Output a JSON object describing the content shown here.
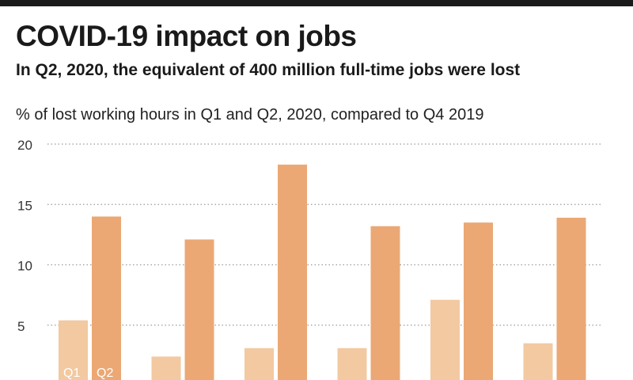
{
  "title": "COVID-19 impact on jobs",
  "subtitle": "In Q2, 2020, the equivalent of 400 million full-time jobs were lost",
  "chart_data": {
    "type": "bar",
    "ylabel": "% of lost working hours in Q1 and Q2, 2020, compared to Q4 2019",
    "ylim": [
      0,
      20
    ],
    "yticks": [
      5,
      10,
      15,
      20
    ],
    "grid": true,
    "categories": [
      "",
      "",
      "",
      "",
      "",
      ""
    ],
    "series": [
      {
        "name": "Q1",
        "color": "#f2c9a0",
        "values": [
          5.4,
          2.4,
          3.1,
          3.1,
          7.1,
          3.5
        ]
      },
      {
        "name": "Q2",
        "color": "#eba874",
        "values": [
          14.0,
          12.1,
          18.3,
          13.2,
          13.5,
          13.9
        ]
      }
    ],
    "label_color": "#ffffff",
    "grid_color": "#9a9a9a",
    "tick_color": "#333333"
  }
}
